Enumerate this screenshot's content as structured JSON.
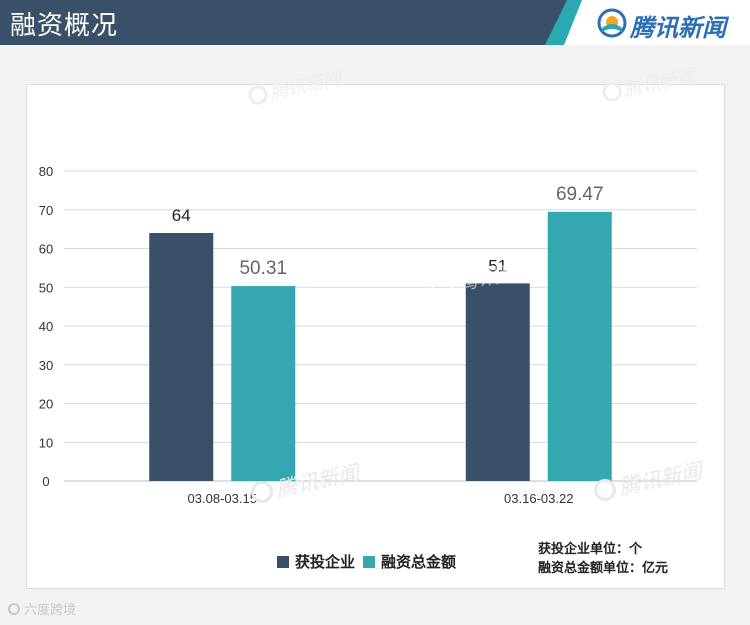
{
  "header": {
    "title": "融资概况",
    "brand": "腾讯新闻"
  },
  "colors": {
    "header_bg": "#3a5068",
    "accent": "#2ba9b2",
    "series_companies": "#3a5068",
    "series_amount": "#35a7b1"
  },
  "chart_data": {
    "type": "bar",
    "categories": [
      "03.08-03.15",
      "03.16-03.22"
    ],
    "series": [
      {
        "name": "获投企业",
        "values": [
          64,
          51
        ],
        "labels": [
          "64",
          "51"
        ]
      },
      {
        "name": "融资总金额",
        "values": [
          50.31,
          69.47
        ],
        "labels": [
          "50.31",
          "69.47"
        ]
      }
    ],
    "ylim": [
      0,
      80
    ],
    "yticks": [
      0,
      10,
      20,
      30,
      40,
      50,
      60,
      70,
      80
    ],
    "grid": true,
    "legend_position": "bottom"
  },
  "units": {
    "line1": "获投企业单位：个",
    "line2": "融资总金额单位：亿元"
  },
  "watermark": "腾讯新闻",
  "footer_mark": "六度跨境"
}
